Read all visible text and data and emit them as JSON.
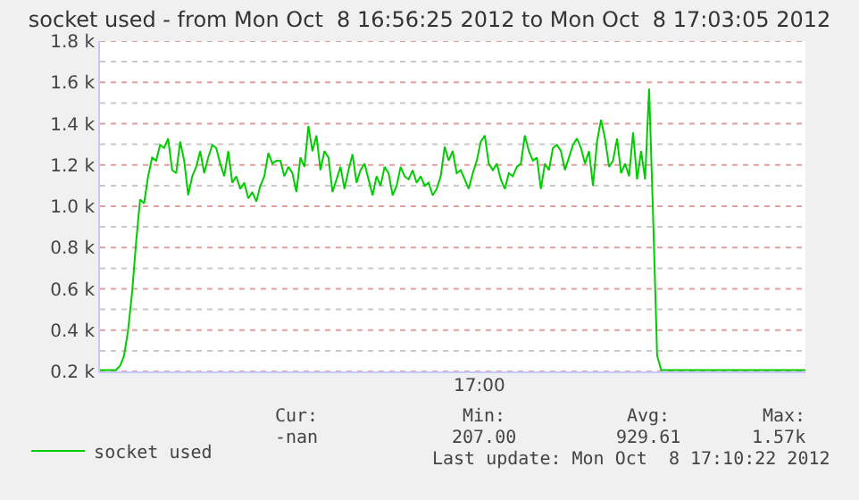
{
  "chart_data": {
    "type": "line",
    "title": "socket used - from Mon Oct  8 16:56:25 2012 to Mon Oct  8 17:03:05 2012",
    "categories": [
      null,
      null,
      null,
      null,
      null,
      null,
      null,
      null,
      null,
      null,
      null,
      null,
      null,
      null,
      null,
      null,
      null,
      null,
      null,
      null,
      null,
      null,
      null,
      null,
      null,
      null,
      null,
      null,
      null,
      null,
      null,
      null,
      null,
      null,
      null,
      null,
      null,
      null,
      null,
      null,
      null,
      null,
      null,
      null,
      null,
      null,
      null,
      null,
      null,
      null,
      null,
      null,
      null,
      null,
      null,
      null,
      null,
      null,
      null,
      null,
      null,
      null,
      null,
      null,
      null,
      null,
      null,
      null,
      null,
      null,
      null,
      null,
      null,
      null,
      null,
      null,
      null,
      null,
      null,
      null,
      null,
      null,
      null,
      null,
      null,
      null,
      null,
      null,
      null,
      null,
      null,
      null,
      null,
      null,
      null,
      null,
      null,
      null,
      null,
      null,
      null,
      null,
      null,
      null,
      null,
      null,
      null,
      null,
      null,
      null,
      null,
      null,
      null,
      null,
      null,
      null,
      null,
      null,
      null,
      null,
      null,
      null,
      null,
      null,
      null,
      null,
      null,
      null,
      null,
      null,
      null,
      null,
      null,
      null,
      null,
      null,
      null,
      null,
      null,
      null,
      null,
      null,
      null,
      null,
      null,
      null,
      null,
      null,
      null,
      null,
      null,
      null,
      null,
      null,
      null,
      null,
      null,
      null,
      null,
      null,
      null,
      null,
      null,
      null,
      null,
      null,
      null,
      null,
      null,
      null,
      null,
      null,
      null,
      null,
      null,
      null,
      null
    ],
    "series": [
      {
        "name": "socket used",
        "color": "#00cc00",
        "values": [
          207,
          207,
          207,
          207,
          207,
          227,
          276,
          398,
          581,
          825,
          1032,
          1014,
          1145,
          1236,
          1221,
          1297,
          1282,
          1328,
          1175,
          1160,
          1313,
          1221,
          1053,
          1145,
          1191,
          1267,
          1160,
          1236,
          1297,
          1282,
          1206,
          1145,
          1267,
          1114,
          1145,
          1084,
          1114,
          1038,
          1069,
          1023,
          1099,
          1145,
          1258,
          1206,
          1221,
          1221,
          1145,
          1191,
          1160,
          1069,
          1236,
          1191,
          1389,
          1267,
          1343,
          1175,
          1267,
          1236,
          1069,
          1130,
          1191,
          1084,
          1175,
          1252,
          1114,
          1175,
          1206,
          1130,
          1053,
          1145,
          1099,
          1191,
          1160,
          1053,
          1099,
          1191,
          1145,
          1130,
          1175,
          1114,
          1145,
          1099,
          1114,
          1053,
          1084,
          1145,
          1288,
          1221,
          1267,
          1160,
          1175,
          1130,
          1084,
          1160,
          1221,
          1313,
          1343,
          1206,
          1175,
          1206,
          1130,
          1084,
          1160,
          1145,
          1191,
          1206,
          1343,
          1267,
          1221,
          1236,
          1084,
          1206,
          1175,
          1282,
          1297,
          1267,
          1175,
          1236,
          1297,
          1328,
          1282,
          1206,
          1267,
          1099,
          1313,
          1419,
          1328,
          1191,
          1221,
          1328,
          1160,
          1206,
          1145,
          1358,
          1130,
          1267,
          1130,
          1570,
          947,
          276,
          207,
          207,
          207,
          207,
          207,
          207,
          207,
          207,
          207,
          207,
          207,
          207,
          207,
          207,
          207,
          207,
          207,
          207,
          207,
          207,
          207,
          207,
          207,
          207,
          207,
          207,
          207,
          207,
          207,
          207,
          207,
          207,
          207,
          207,
          207,
          207,
          207
        ]
      }
    ],
    "ylim": [
      200,
      1800
    ],
    "yticks": [
      {
        "value": 200,
        "label": "0.2 k"
      },
      {
        "value": 300,
        "label": null
      },
      {
        "value": 400,
        "label": "0.4 k"
      },
      {
        "value": 500,
        "label": null
      },
      {
        "value": 600,
        "label": "0.6 k"
      },
      {
        "value": 700,
        "label": null
      },
      {
        "value": 800,
        "label": "0.8 k"
      },
      {
        "value": 900,
        "label": null
      },
      {
        "value": 1000,
        "label": "1.0 k"
      },
      {
        "value": 1100,
        "label": null
      },
      {
        "value": 1200,
        "label": "1.2 k"
      },
      {
        "value": 1300,
        "label": null
      },
      {
        "value": 1400,
        "label": "1.4 k"
      },
      {
        "value": 1500,
        "label": null
      },
      {
        "value": 1600,
        "label": "1.6 k"
      },
      {
        "value": 1700,
        "label": null
      },
      {
        "value": 1800,
        "label": "1.8 k"
      }
    ],
    "grid": "y",
    "legend": "bottom left",
    "annotations": [
      "17:00",
      "Cur:",
      "Min:",
      "Avg:",
      "Max:",
      "-nan",
      "207.00",
      "929.61",
      "1.57k",
      "Last update: Mon Oct  8 17:10:22 2012"
    ]
  }
}
